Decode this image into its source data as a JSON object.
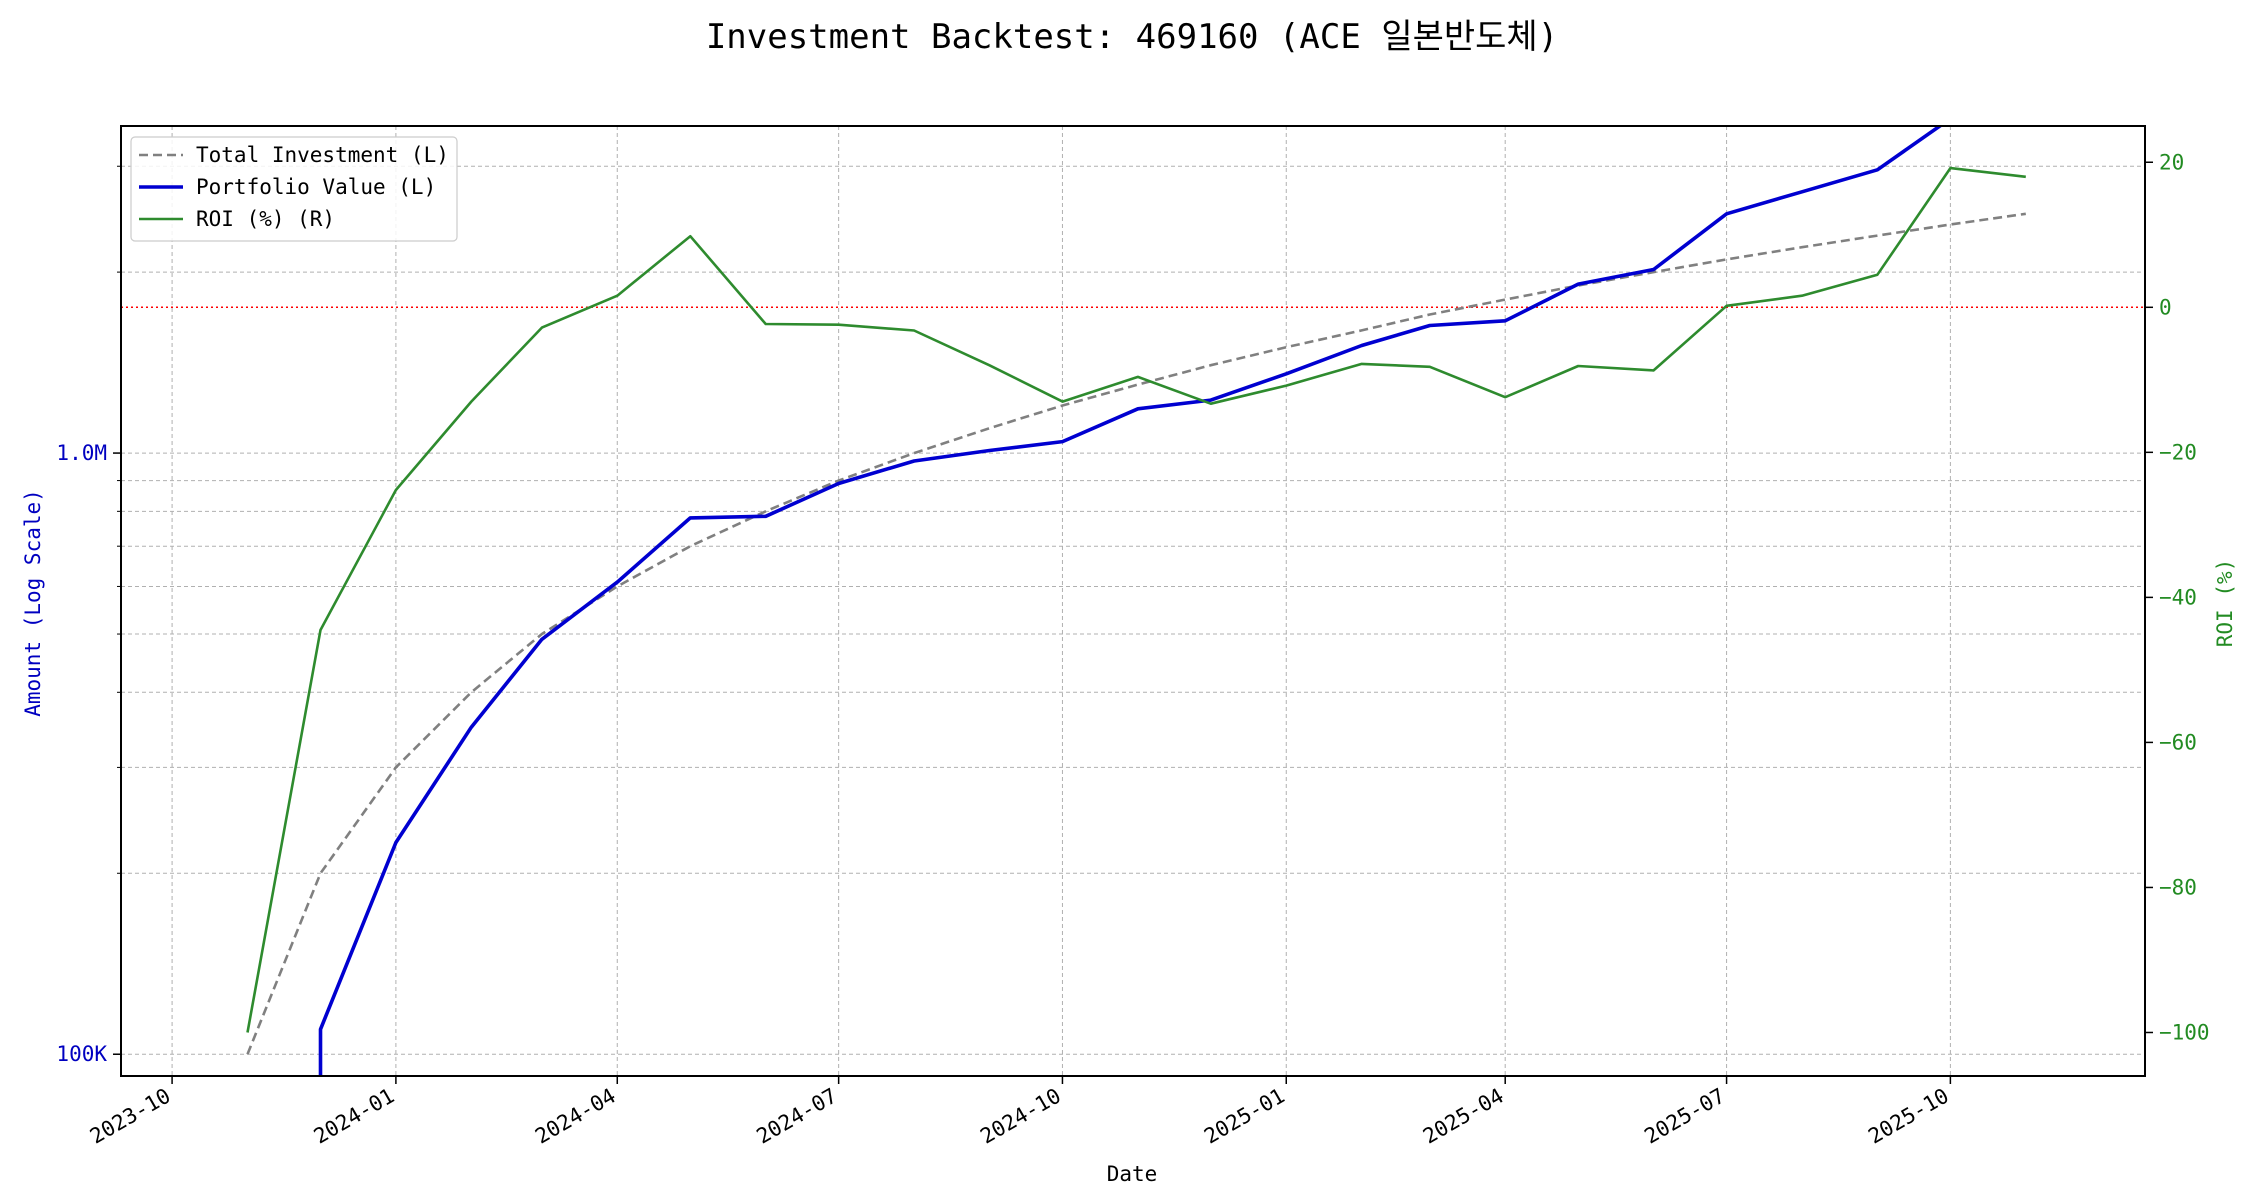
{
  "chart_data": {
    "type": "line",
    "title": "Investment Backtest: 469160 (ACE 일본반도체)",
    "xlabel": "Date",
    "ylabel_left": "Amount (Log Scale)",
    "ylabel_right": "ROI (%)",
    "left_scale": "log",
    "left_ylim": [
      92000,
      3500000
    ],
    "right_ylim": [
      -106,
      25
    ],
    "xlim": [
      "2023-09-10",
      "2025-12-20"
    ],
    "grid": true,
    "legend_position": "top-left",
    "x_ticks": [
      "2023-10",
      "2024-01",
      "2024-04",
      "2024-07",
      "2024-10",
      "2025-01",
      "2025-04",
      "2025-07",
      "2025-10"
    ],
    "left_ticks": [
      {
        "value": 100000,
        "label": "100K"
      },
      {
        "value": 1000000,
        "label": "1.0M"
      }
    ],
    "left_minor_ticks": [
      200000,
      300000,
      400000,
      500000,
      600000,
      700000,
      800000,
      900000,
      2000000,
      3000000
    ],
    "right_ticks": [
      20,
      0,
      -20,
      -40,
      -60,
      -80,
      -100
    ],
    "right_tick_labels": [
      "20",
      "0",
      "−20",
      "−40",
      "−60",
      "−80",
      "−100"
    ],
    "reference_line": {
      "axis": "right",
      "value": 0,
      "color": "#ff0000"
    },
    "colors": {
      "total_investment": "#808080",
      "portfolio_value": "#0000d0",
      "roi": "#2e8b2e",
      "left_axis": "#0000c0",
      "right_axis": "#228b22"
    },
    "series": [
      {
        "name": "Total Investment (L)",
        "axis": "left",
        "style": "dashed",
        "x": [
          "2023-11-01",
          "2023-12-01",
          "2024-01-01",
          "2024-02-01",
          "2024-03-01",
          "2024-04-01",
          "2024-05-01",
          "2024-06-01",
          "2024-07-01",
          "2024-08-01",
          "2024-09-01",
          "2024-10-01",
          "2024-11-01",
          "2024-12-01",
          "2025-01-01",
          "2025-02-01",
          "2025-03-01",
          "2025-04-01",
          "2025-05-01",
          "2025-06-01",
          "2025-07-01",
          "2025-08-01",
          "2025-09-01",
          "2025-10-01",
          "2025-11-01"
        ],
        "values": [
          100000,
          200000,
          300000,
          400000,
          500000,
          600000,
          700000,
          800000,
          900000,
          1000000,
          1100000,
          1200000,
          1300000,
          1400000,
          1500000,
          1600000,
          1700000,
          1800000,
          1900000,
          2000000,
          2100000,
          2200000,
          2300000,
          2400000,
          2500000
        ]
      },
      {
        "name": "Portfolio Value (L)",
        "axis": "left",
        "style": "solid-thick",
        "x": [
          "2023-12-01",
          "2023-12-01",
          "2024-01-01",
          "2024-02-01",
          "2024-03-01",
          "2024-04-01",
          "2024-05-01",
          "2024-06-01",
          "2024-07-01",
          "2024-08-01",
          "2024-09-01",
          "2024-10-01",
          "2024-11-01",
          "2024-12-01",
          "2025-01-01",
          "2025-02-01",
          "2025-03-01",
          "2025-04-01",
          "2025-05-01",
          "2025-06-01",
          "2025-07-01",
          "2025-08-01",
          "2025-09-01",
          "2025-10-01",
          "2025-11-01"
        ],
        "values": [
          90000,
          110000,
          225000,
          350000,
          490000,
          610000,
          780000,
          785000,
          890000,
          970000,
          1010000,
          1045000,
          1185000,
          1225000,
          1355000,
          1510000,
          1630000,
          1660000,
          1910000,
          2020000,
          2500000,
          2720000,
          2960000,
          3600000,
          3700000
        ]
      },
      {
        "name": "ROI (%) (R)",
        "axis": "right",
        "style": "solid",
        "x": [
          "2023-11-01",
          "2023-12-01",
          "2024-01-01",
          "2024-02-01",
          "2024-03-01",
          "2024-04-01",
          "2024-05-01",
          "2024-06-01",
          "2024-07-01",
          "2024-08-01",
          "2024-09-01",
          "2024-10-01",
          "2024-11-01",
          "2024-12-01",
          "2025-01-01",
          "2025-02-01",
          "2025-03-01",
          "2025-04-01",
          "2025-05-01",
          "2025-06-01",
          "2025-07-01",
          "2025-08-01",
          "2025-09-01",
          "2025-10-01",
          "2025-11-01"
        ],
        "values": [
          -100,
          -44.5,
          -25.2,
          -13,
          -2.8,
          1.6,
          9.8,
          -2.3,
          -2.4,
          -3.2,
          -8,
          -13,
          -9.6,
          -13.3,
          -10.8,
          -7.8,
          -8.2,
          -12.4,
          -8.1,
          -8.7,
          0.2,
          1.6,
          4.5,
          19.2,
          18
        ]
      }
    ]
  }
}
